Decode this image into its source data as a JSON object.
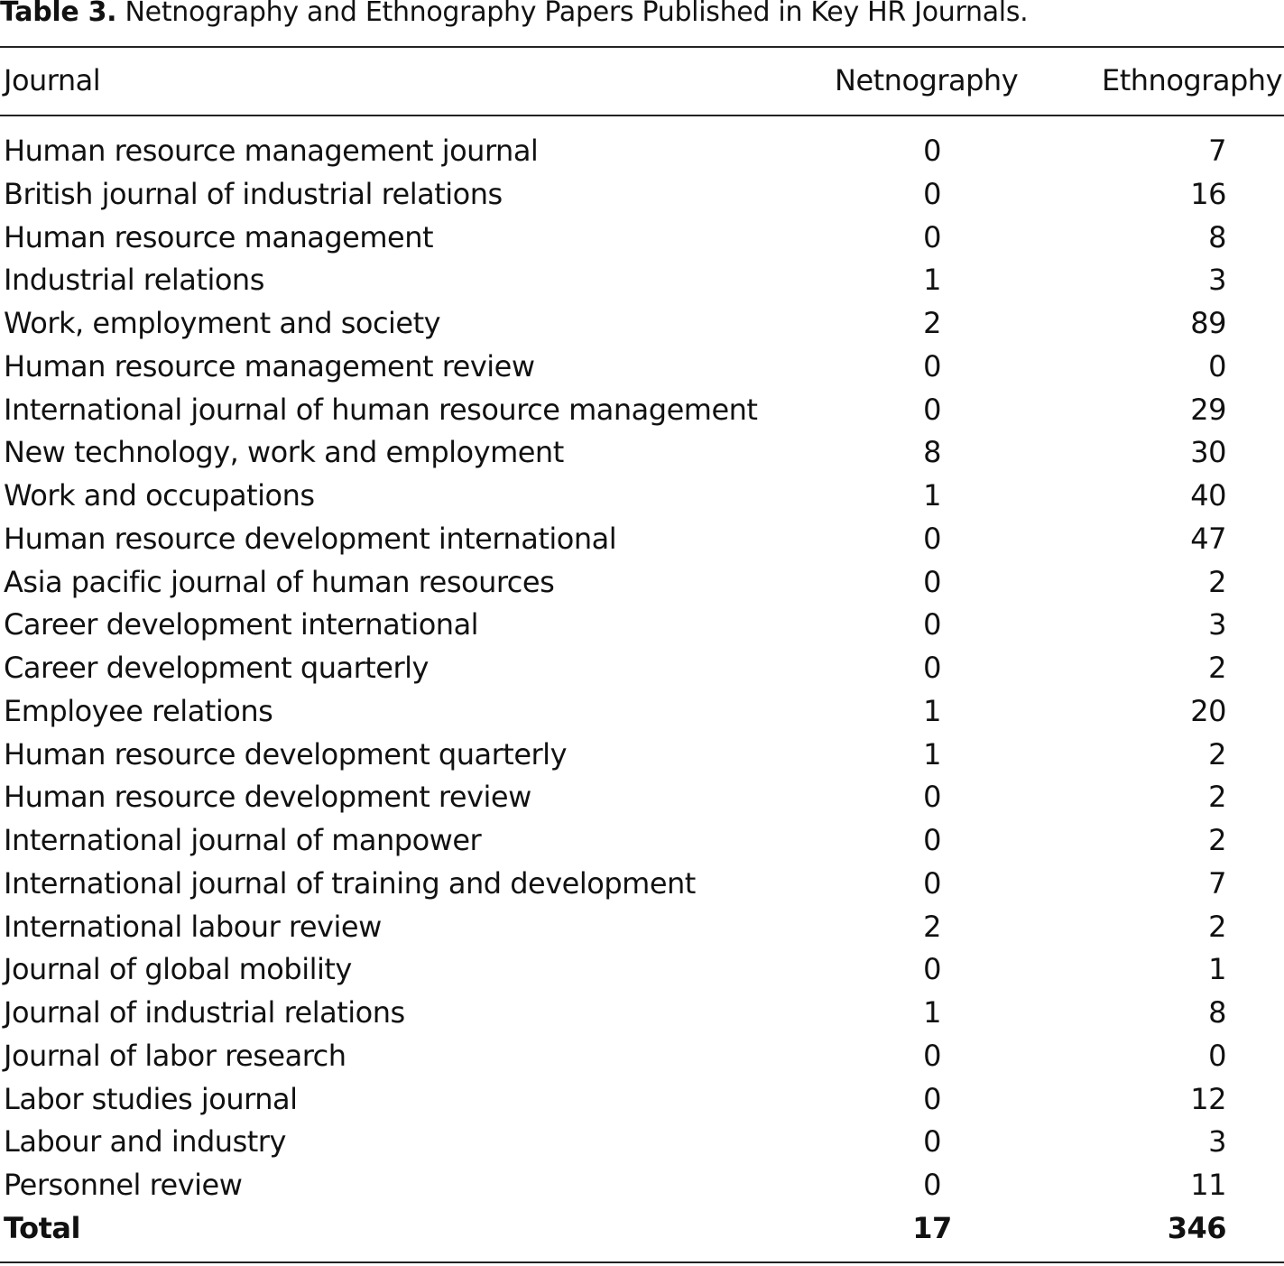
{
  "table": {
    "label": "Table 3.",
    "caption": "Netnography and Ethnography Papers Published in Key HR Journals.",
    "columns": [
      "Journal",
      "Netnography",
      "Ethnography"
    ],
    "rows": [
      [
        "Human resource management journal",
        "0",
        "7"
      ],
      [
        "British journal of industrial relations",
        "0",
        "16"
      ],
      [
        "Human resource management",
        "0",
        "8"
      ],
      [
        "Industrial relations",
        "1",
        "3"
      ],
      [
        "Work, employment and society",
        "2",
        "89"
      ],
      [
        "Human resource management review",
        "0",
        "0"
      ],
      [
        "International journal of human resource management",
        "0",
        "29"
      ],
      [
        "New technology, work and employment",
        "8",
        "30"
      ],
      [
        "Work and occupations",
        "1",
        "40"
      ],
      [
        "Human resource development international",
        "0",
        "47"
      ],
      [
        "Asia pacific journal of human resources",
        "0",
        "2"
      ],
      [
        "Career development international",
        "0",
        "3"
      ],
      [
        "Career development quarterly",
        "0",
        "2"
      ],
      [
        "Employee relations",
        "1",
        "20"
      ],
      [
        "Human resource development quarterly",
        "1",
        "2"
      ],
      [
        "Human resource development review",
        "0",
        "2"
      ],
      [
        "International journal of manpower",
        "0",
        "2"
      ],
      [
        "International journal of training and development",
        "0",
        "7"
      ],
      [
        "International labour review",
        "2",
        "2"
      ],
      [
        "Journal of global mobility",
        "0",
        "1"
      ],
      [
        "Journal of industrial relations",
        "1",
        "8"
      ],
      [
        "Journal of labor research",
        "0",
        "0"
      ],
      [
        "Labor studies journal",
        "0",
        "12"
      ],
      [
        "Labour and industry",
        "0",
        "3"
      ],
      [
        "Personnel review",
        "0",
        "11"
      ]
    ],
    "total": [
      "Total",
      "17",
      "346"
    ]
  }
}
